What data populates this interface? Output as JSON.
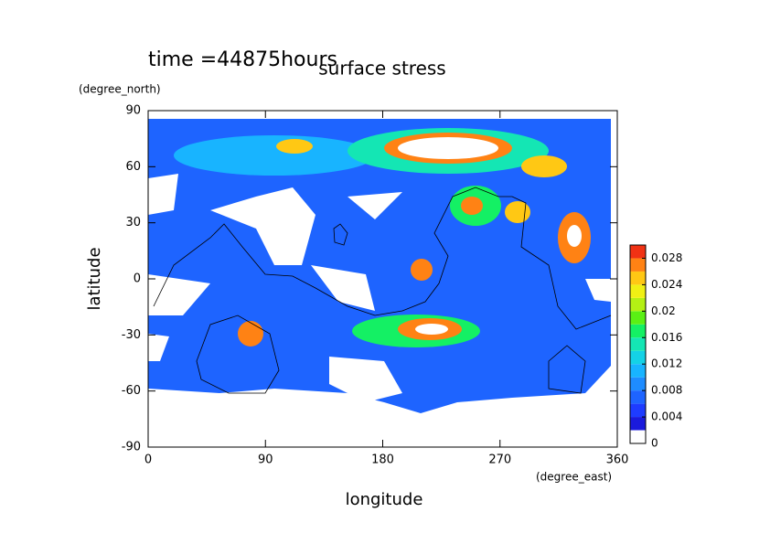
{
  "chart_data": {
    "type": "contour",
    "title": "surface stress",
    "subtitle": "time =44875hours",
    "x_label": "longitude",
    "x_unit": "(degree_east)",
    "y_label": "latitude",
    "y_unit": "(degree_north)",
    "xlim": [
      0,
      360
    ],
    "xticks": [
      0,
      90,
      180,
      270,
      360
    ],
    "ylim": [
      -90,
      90
    ],
    "yticks": [
      -90,
      -60,
      -30,
      0,
      30,
      60,
      90
    ],
    "colorbar": {
      "clim": [
        0,
        0.03
      ],
      "ticks": [
        0,
        0.004,
        0.008,
        0.012,
        0.016,
        0.02,
        0.024,
        0.028
      ],
      "colors": [
        "#ffffff",
        "#1a1adc",
        "#1e3cff",
        "#1e64ff",
        "#1e8cff",
        "#18b4ff",
        "#14d2e6",
        "#14e6b4",
        "#14f064",
        "#5af014",
        "#b4f014",
        "#f0f014",
        "#ffc814",
        "#ff8214",
        "#f03214"
      ]
    }
  }
}
